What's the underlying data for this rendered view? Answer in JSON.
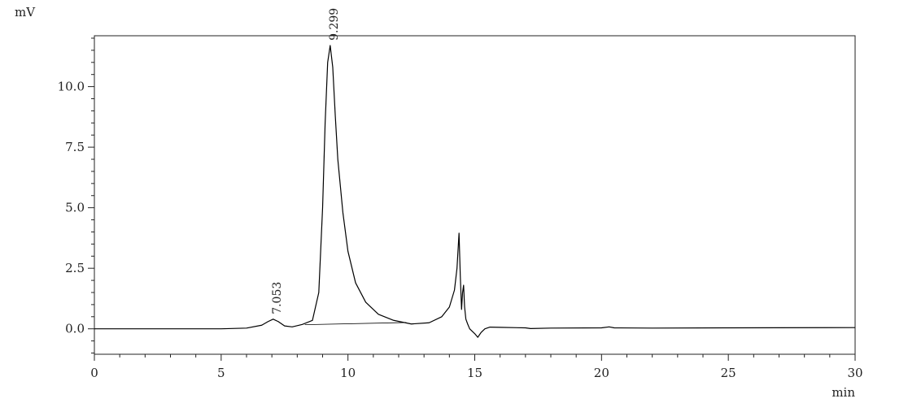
{
  "chart_data": {
    "type": "line",
    "title": "",
    "ylabel": "mV",
    "xlabel": "min",
    "xlim": [
      0,
      30
    ],
    "ylim": [
      -1.05,
      12.1
    ],
    "x_ticks": [
      0,
      5,
      10,
      15,
      20,
      25,
      30
    ],
    "x_tick_labels": [
      "0",
      "5",
      "10",
      "15",
      "20",
      "25",
      "30"
    ],
    "y_ticks": [
      0.0,
      2.5,
      5.0,
      7.5,
      10.0
    ],
    "y_tick_labels": [
      "0.0",
      "2.5",
      "5.0",
      "7.5",
      "10.0"
    ],
    "grid": false,
    "series": [
      {
        "name": "",
        "color": "#000000",
        "x": [
          0,
          5,
          6,
          6.6,
          6.85,
          7.05,
          7.25,
          7.5,
          7.8,
          8.2,
          8.6,
          8.85,
          9.0,
          9.1,
          9.2,
          9.299,
          9.4,
          9.5,
          9.6,
          9.8,
          10.0,
          10.3,
          10.7,
          11.2,
          11.8,
          12.5,
          13.2,
          13.7,
          14.0,
          14.2,
          14.3,
          14.38,
          14.43,
          14.48,
          14.52,
          14.56,
          14.6,
          14.65,
          14.72,
          14.8,
          14.9,
          15.0,
          15.12,
          15.25,
          15.4,
          15.6,
          16,
          17,
          17.2,
          18,
          20,
          20.3,
          20.5,
          22,
          25,
          30
        ],
        "y": [
          0.0,
          0.0,
          0.03,
          0.15,
          0.3,
          0.4,
          0.3,
          0.12,
          0.08,
          0.18,
          0.35,
          1.5,
          5.0,
          8.5,
          11.0,
          11.7,
          10.8,
          8.8,
          7.0,
          4.8,
          3.2,
          1.9,
          1.1,
          0.6,
          0.35,
          0.2,
          0.25,
          0.5,
          0.9,
          1.6,
          2.5,
          3.95,
          2.2,
          0.8,
          1.5,
          1.8,
          0.9,
          0.4,
          0.2,
          0.0,
          -0.1,
          -0.2,
          -0.35,
          -0.15,
          0.0,
          0.07,
          0.06,
          0.04,
          0.01,
          0.03,
          0.04,
          0.08,
          0.04,
          0.03,
          0.04,
          0.05
        ]
      }
    ],
    "peak_labels": [
      {
        "x": 7.053,
        "y": 0.4,
        "text": "7.053"
      },
      {
        "x": 9.299,
        "y": 11.7,
        "text": "9.299"
      }
    ]
  }
}
